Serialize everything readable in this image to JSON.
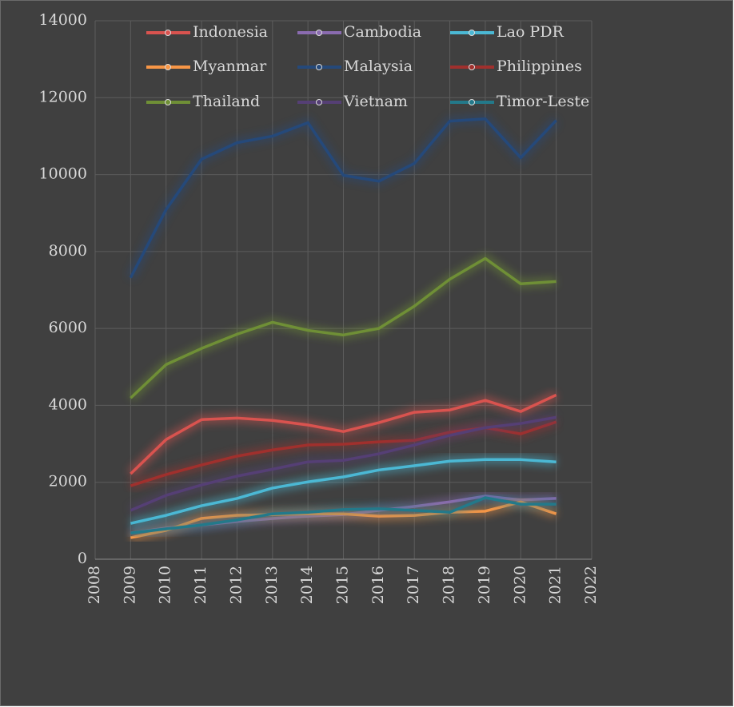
{
  "chart_data": {
    "type": "line",
    "x": [
      2009,
      2010,
      2011,
      2012,
      2013,
      2014,
      2015,
      2016,
      2017,
      2018,
      2019,
      2020,
      2021
    ],
    "xlim": [
      2008,
      2022
    ],
    "xticks": [
      2008,
      2009,
      2010,
      2011,
      2012,
      2013,
      2014,
      2015,
      2016,
      2017,
      2018,
      2019,
      2020,
      2021,
      2022
    ],
    "ylim": [
      0,
      14000
    ],
    "yticks": [
      0,
      2000,
      4000,
      6000,
      8000,
      10000,
      12000,
      14000
    ],
    "grid": true,
    "legend": "top",
    "series": [
      {
        "name": "Indonesia",
        "color": "#d9534f",
        "values": [
          2220,
          3110,
          3630,
          3670,
          3610,
          3490,
          3320,
          3550,
          3820,
          3880,
          4130,
          3840,
          4270
        ]
      },
      {
        "name": "Cambodia",
        "color": "#8a6bb0",
        "values": [
          680,
          810,
          890,
          980,
          1060,
          1120,
          1160,
          1270,
          1370,
          1490,
          1640,
          1540,
          1580
        ]
      },
      {
        "name": "Lao PDR",
        "color": "#4bb8d4",
        "values": [
          930,
          1140,
          1390,
          1580,
          1850,
          2010,
          2140,
          2320,
          2430,
          2550,
          2590,
          2590,
          2530
        ]
      },
      {
        "name": "Myanmar",
        "color": "#f79646",
        "values": [
          560,
          750,
          1060,
          1140,
          1160,
          1180,
          1180,
          1120,
          1140,
          1220,
          1250,
          1490,
          1180
        ]
      },
      {
        "name": "Malaysia",
        "color": "#25497a",
        "values": [
          7320,
          9090,
          10400,
          10830,
          11000,
          11350,
          9980,
          9830,
          10290,
          11390,
          11450,
          10440,
          11410
        ]
      },
      {
        "name": "Philippines",
        "color": "#a0302d",
        "values": [
          1910,
          2200,
          2450,
          2680,
          2840,
          2970,
          2990,
          3050,
          3090,
          3300,
          3420,
          3260,
          3570
        ]
      },
      {
        "name": "Thailand",
        "color": "#6f8f36",
        "values": [
          4190,
          5060,
          5480,
          5850,
          6160,
          5950,
          5830,
          6000,
          6580,
          7280,
          7820,
          7160,
          7220
        ]
      },
      {
        "name": "Vietnam",
        "color": "#553f75",
        "values": [
          1270,
          1660,
          1930,
          2160,
          2340,
          2530,
          2570,
          2740,
          2970,
          3220,
          3420,
          3530,
          3690
        ]
      },
      {
        "name": "Timor-Leste",
        "color": "#23798a",
        "values": [
          680,
          790,
          890,
          1020,
          1180,
          1220,
          1290,
          1310,
          1270,
          1220,
          1600,
          1430,
          1430
        ]
      }
    ]
  }
}
